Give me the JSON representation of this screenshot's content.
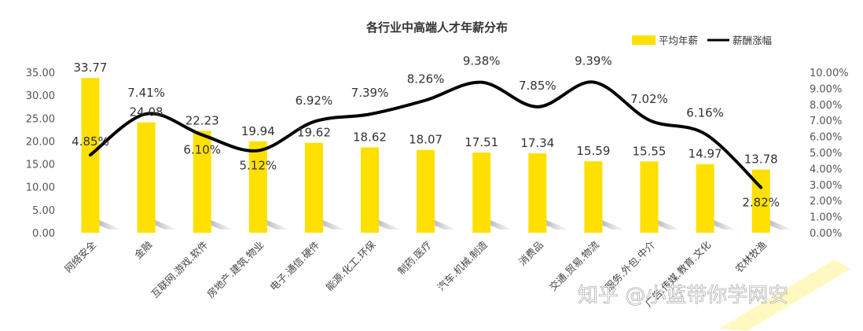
{
  "chart_data": {
    "type": "bar",
    "title": "各行业中高端人才年薪分布",
    "categories": [
      "网络安全",
      "金融",
      "互联网.游戏.软件",
      "房地产.建筑.物业",
      "电子.通信.硬件",
      "能源.化工.环保",
      "制药.医疗",
      "汽车.机械.制造",
      "消费品",
      "交通.贸易.物流",
      "服务.外包.中介",
      "广告.传媒.教育.文化",
      "农林牧渔"
    ],
    "series": [
      {
        "name": "平均年薪",
        "type": "bar",
        "axis": "left",
        "color": "#FFE000",
        "values": [
          33.77,
          24.08,
          22.23,
          19.94,
          19.62,
          18.62,
          18.07,
          17.51,
          17.34,
          15.59,
          15.55,
          14.97,
          13.78
        ]
      },
      {
        "name": "薪酬涨幅",
        "type": "line",
        "axis": "right",
        "color": "#000000",
        "values": [
          4.85,
          7.41,
          6.1,
          5.12,
          6.92,
          7.39,
          8.26,
          9.38,
          7.85,
          9.39,
          7.02,
          6.16,
          2.82
        ]
      }
    ],
    "bar_labels": [
      "33.77",
      "24.08",
      "22.23",
      "19.94",
      "19.62",
      "18.62",
      "18.07",
      "17.51",
      "17.34",
      "15.59",
      "15.55",
      "14.97",
      "13.78"
    ],
    "line_labels": [
      "4.85%",
      "7.41%",
      "6.10%",
      "5.12%",
      "6.92%",
      "7.39%",
      "8.26%",
      "9.38%",
      "7.85%",
      "9.39%",
      "7.02%",
      "6.16%",
      "2.82%"
    ],
    "ylim": [
      0,
      35
    ],
    "yticks": [
      "0.00",
      "5.00",
      "10.00",
      "15.00",
      "20.00",
      "25.00",
      "30.00",
      "35.00"
    ],
    "y2lim": [
      0,
      10
    ],
    "y2ticks": [
      "0.00%",
      "1.00%",
      "2.00%",
      "3.00%",
      "4.00%",
      "5.00%",
      "6.00%",
      "7.00%",
      "8.00%",
      "9.00%",
      "10.00%"
    ],
    "legend_position": "top-right",
    "grid": false
  },
  "watermark": "知乎 @小蓝带你学网安"
}
